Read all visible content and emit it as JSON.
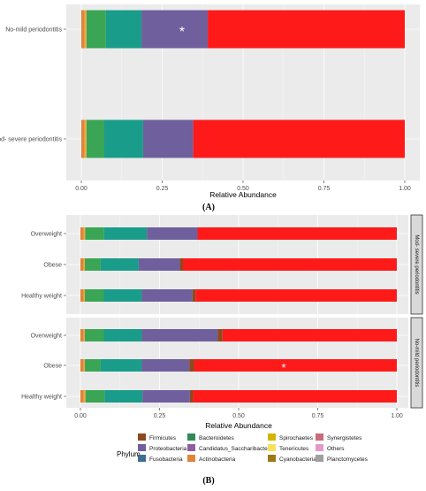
{
  "colors": {
    "panel_bg": "#ebebeb",
    "strip_bg": "#d9d9d9"
  },
  "phyla": [
    {
      "name": "Firmicutes",
      "color": "#8c4a1f"
    },
    {
      "name": "Proteobacteria",
      "color": "#6f5f9c"
    },
    {
      "name": "Fusobacteria",
      "color": "#3f6f8f"
    },
    {
      "name": "Bacteroidetes",
      "color": "#2e8b57"
    },
    {
      "name": "Candidatus_Saccharibacteria",
      "color": "#8e5ea2"
    },
    {
      "name": "Actinobacteria",
      "color": "#e0843a"
    },
    {
      "name": "Spirochaetes",
      "color": "#d4b400"
    },
    {
      "name": "Tenericutes",
      "color": "#f5e25a"
    },
    {
      "name": "Cyanobacteria",
      "color": "#9c7a1a"
    },
    {
      "name": "Synergistetes",
      "color": "#c96b7a"
    },
    {
      "name": "Others",
      "color": "#e29ac8"
    },
    {
      "name": "Planctomycetes",
      "color": "#a0a0a0"
    }
  ],
  "chart_data": [
    {
      "type": "bar",
      "orientation": "horizontal",
      "stacked": true,
      "panel_label": "(A)",
      "xlabel": "Relative Abundance",
      "ylabel": "",
      "xlim": [
        0,
        1
      ],
      "x_ticks": [
        "0.00",
        "0.25",
        "0.50",
        "0.75",
        "1.00"
      ],
      "categories": [
        "No-mild periodontitis",
        "Mod- severe periodontitis"
      ],
      "annotations": [
        {
          "category": "No-mild periodontitis",
          "text": "*"
        }
      ],
      "segments": [
        {
          "color": "#e0843a",
          "values": [
            0.01,
            0.01
          ]
        },
        {
          "color": "#f2a93b",
          "values": [
            0.006,
            0.006
          ]
        },
        {
          "color": "#3aa655",
          "values": [
            0.06,
            0.055
          ]
        },
        {
          "color": "#1a9c8a",
          "values": [
            0.11,
            0.12
          ]
        },
        {
          "color": "#6f5f9c",
          "values": [
            0.205,
            0.155
          ]
        },
        {
          "color": "#ff1a1a",
          "values": [
            0.609,
            0.654
          ]
        }
      ]
    },
    {
      "type": "bar",
      "orientation": "horizontal",
      "stacked": true,
      "panel_label": "(B)",
      "xlabel": "Relative Abundance",
      "ylabel": "",
      "xlim": [
        0,
        1
      ],
      "x_ticks": [
        "0.00",
        "0.25",
        "0.50",
        "0.75",
        "1.00"
      ],
      "facets": [
        {
          "strip": "Mod- severe periodontitis",
          "categories": [
            "Overweight",
            "Obese",
            "Healthy weight"
          ],
          "segments": [
            {
              "color": "#e0843a",
              "values": [
                0.01,
                0.01,
                0.01
              ]
            },
            {
              "color": "#f2a93b",
              "values": [
                0.005,
                0.004,
                0.004
              ]
            },
            {
              "color": "#3aa655",
              "values": [
                0.06,
                0.05,
                0.06
              ]
            },
            {
              "color": "#1a9c8a",
              "values": [
                0.135,
                0.12,
                0.12
              ]
            },
            {
              "color": "#6f5f9c",
              "values": [
                0.16,
                0.13,
                0.16
              ]
            },
            {
              "color": "#8c4a1f",
              "values": [
                0.0,
                0.01,
                0.01
              ]
            },
            {
              "color": "#ff1a1a",
              "values": [
                0.63,
                0.676,
                0.636
              ]
            }
          ]
        },
        {
          "strip": "No-mild periodontitis",
          "categories": [
            "Overweight",
            "Obese",
            "Healthy weight"
          ],
          "annotations": [
            {
              "category": "Obese",
              "text": "*"
            }
          ],
          "segments": [
            {
              "color": "#e0843a",
              "values": [
                0.01,
                0.01,
                0.01
              ]
            },
            {
              "color": "#f2a93b",
              "values": [
                0.004,
                0.004,
                0.006
              ]
            },
            {
              "color": "#3aa655",
              "values": [
                0.06,
                0.05,
                0.06
              ]
            },
            {
              "color": "#1a9c8a",
              "values": [
                0.12,
                0.13,
                0.12
              ]
            },
            {
              "color": "#6f5f9c",
              "values": [
                0.24,
                0.15,
                0.15
              ]
            },
            {
              "color": "#8c4a1f",
              "values": [
                0.015,
                0.015,
                0.01
              ]
            },
            {
              "color": "#ff1a1a",
              "values": [
                0.551,
                0.641,
                0.644
              ]
            }
          ]
        }
      ],
      "legend": {
        "title": "Phylum",
        "placement": "bottom",
        "entries": [
          "Firmicutes",
          "Proteobacteria",
          "Fusobacteria",
          "Bacteroidetes",
          "Candidatus_Saccharibacteria",
          "Actinobacteria",
          "Spirochaetes",
          "Tenericutes",
          "Cyanobacteria",
          "Synergistetes",
          "Others",
          "Planctomycetes"
        ]
      }
    }
  ]
}
